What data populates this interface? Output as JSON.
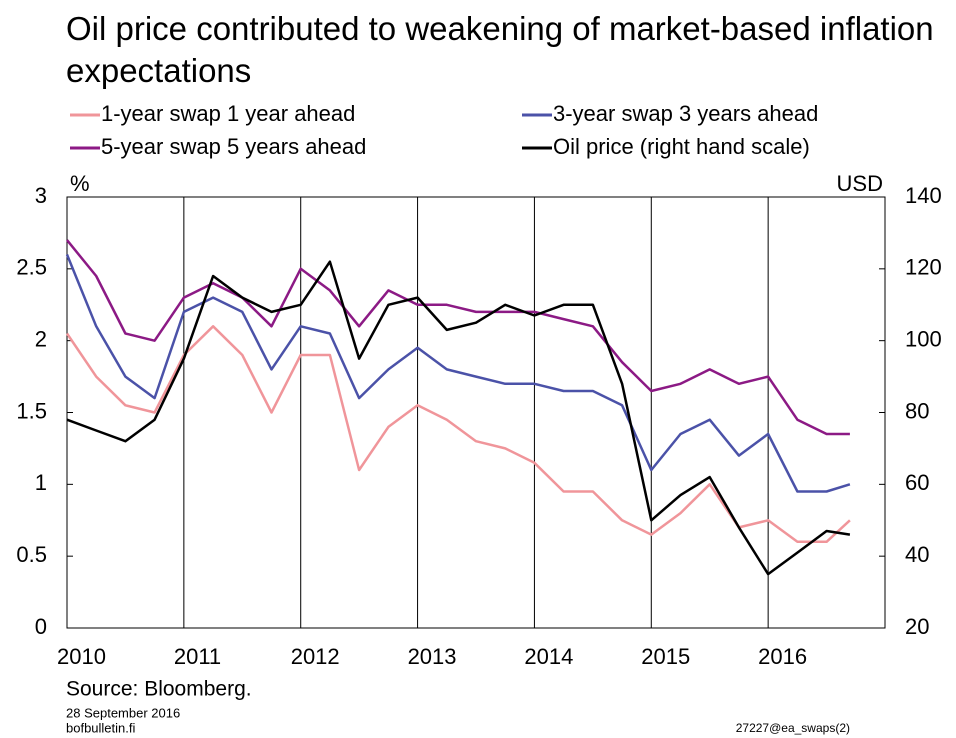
{
  "chart_data": {
    "type": "line",
    "title": "Oil price contributed to weakening of market-based inflation expectations",
    "y_label": "%",
    "y2_label": "USD",
    "source": "Source: Bloomberg.",
    "date": "28 September 2016",
    "site": "bofbulletin.fi",
    "code": "27227@ea_swaps(2)",
    "x": [
      2010,
      2010.25,
      2010.5,
      2010.75,
      2011,
      2011.25,
      2011.5,
      2011.75,
      2012,
      2012.25,
      2012.5,
      2012.75,
      2013,
      2013.25,
      2013.5,
      2013.75,
      2014,
      2014.25,
      2014.5,
      2014.75,
      2015,
      2015.25,
      2015.5,
      2015.75,
      2016,
      2016.25,
      2016.5,
      2016.7
    ],
    "xlim": [
      2010,
      2017
    ],
    "xticks": [
      2010,
      2011,
      2012,
      2013,
      2014,
      2015,
      2016
    ],
    "ylim": [
      0,
      3
    ],
    "yticks": [
      0,
      0.5,
      1,
      1.5,
      2,
      2.5,
      3
    ],
    "y2lim": [
      20,
      140
    ],
    "y2ticks": [
      20,
      40,
      60,
      80,
      100,
      120,
      140
    ],
    "grid": true,
    "series": [
      {
        "name": "1-year swap 1 year ahead",
        "color": "#f0959a",
        "values": [
          2.05,
          1.75,
          1.55,
          1.5,
          1.9,
          2.1,
          1.9,
          1.5,
          1.9,
          1.9,
          1.1,
          1.4,
          1.55,
          1.45,
          1.3,
          1.25,
          1.15,
          0.95,
          0.95,
          0.75,
          0.65,
          0.8,
          1.0,
          0.7,
          0.75,
          0.6,
          0.6,
          0.75
        ]
      },
      {
        "name": "3-year swap 3 years ahead",
        "color": "#4b52a8",
        "values": [
          2.6,
          2.1,
          1.75,
          1.6,
          2.2,
          2.3,
          2.2,
          1.8,
          2.1,
          2.05,
          1.6,
          1.8,
          1.95,
          1.8,
          1.75,
          1.7,
          1.7,
          1.65,
          1.65,
          1.55,
          1.1,
          1.35,
          1.45,
          1.2,
          1.35,
          0.95,
          0.95,
          1.0
        ]
      },
      {
        "name": "5-year swap 5 years ahead",
        "color": "#8c1a85",
        "values": [
          2.7,
          2.45,
          2.05,
          2.0,
          2.3,
          2.4,
          2.3,
          2.1,
          2.5,
          2.35,
          2.1,
          2.35,
          2.25,
          2.25,
          2.2,
          2.2,
          2.2,
          2.15,
          2.1,
          1.85,
          1.65,
          1.7,
          1.8,
          1.7,
          1.75,
          1.45,
          1.35,
          1.35
        ]
      },
      {
        "name": "Oil price (right hand scale)",
        "color": "#000000",
        "axis": "y2",
        "values": [
          78,
          75,
          72,
          78,
          95,
          118,
          112,
          108,
          110,
          122,
          95,
          110,
          112,
          103,
          105,
          110,
          107,
          110,
          110,
          88,
          50,
          57,
          62,
          48,
          35,
          41,
          47,
          46
        ]
      }
    ]
  }
}
